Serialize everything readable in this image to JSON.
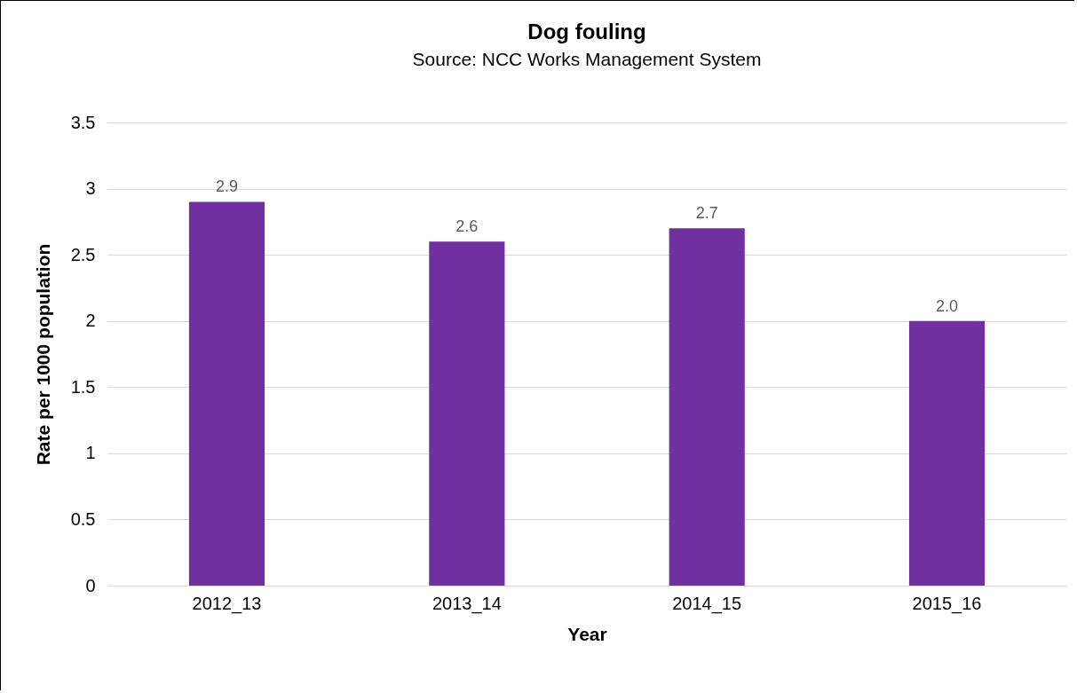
{
  "chart_data": {
    "type": "bar",
    "title": "Dog fouling",
    "subtitle": "Source: NCC Works Management System",
    "xlabel": "Year",
    "ylabel": "Rate per 1000 population",
    "categories": [
      "2012_13",
      "2013_14",
      "2014_15",
      "2015_16"
    ],
    "values": [
      2.9,
      2.6,
      2.7,
      2.0
    ],
    "value_labels": [
      "2.9",
      "2.6",
      "2.7",
      "2.0"
    ],
    "color": "#7030a0",
    "ylim": [
      0,
      3.5
    ],
    "yticks": [
      0,
      0.5,
      1,
      1.5,
      2,
      2.5,
      3,
      3.5
    ],
    "grid": "y"
  }
}
